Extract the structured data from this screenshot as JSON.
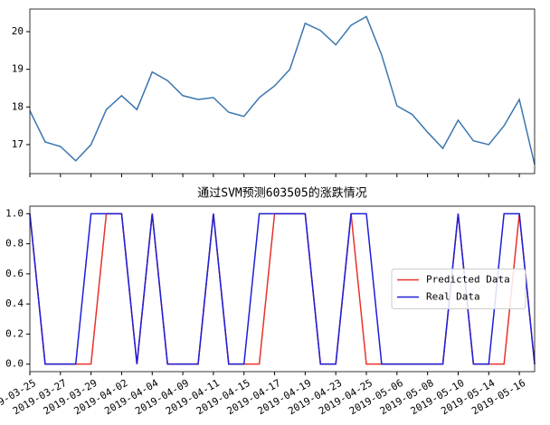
{
  "chart_data": [
    {
      "type": "line",
      "color": "#3a76af",
      "values": [
        17.9,
        17.07,
        16.95,
        16.57,
        17.0,
        17.93,
        18.3,
        17.93,
        18.93,
        18.7,
        18.3,
        18.2,
        18.25,
        17.86,
        17.75,
        18.25,
        18.56,
        19.0,
        20.22,
        20.03,
        19.65,
        20.17,
        20.4,
        19.38,
        18.03,
        17.8,
        17.33,
        16.9,
        17.65,
        17.1,
        17.0,
        17.5,
        18.2,
        16.47
      ],
      "ylim": [
        16.23,
        20.6
      ],
      "yticks": [
        17,
        18,
        19,
        20
      ]
    },
    {
      "type": "line",
      "title": "通过SVM预测603505的涨跌情况",
      "categories": [
        "2019-03-25",
        null,
        "2019-03-27",
        null,
        "2019-03-29",
        null,
        "2019-04-02",
        null,
        "2019-04-04",
        null,
        "2019-04-09",
        null,
        "2019-04-11",
        null,
        "2019-04-15",
        null,
        "2019-04-17",
        null,
        "2019-04-19",
        null,
        "2019-04-23",
        null,
        "2019-04-25",
        null,
        "2019-05-06",
        null,
        "2019-05-08",
        null,
        "2019-05-10",
        null,
        "2019-05-14",
        null,
        "2019-05-16",
        null
      ],
      "series": [
        {
          "name": "Predicted Data",
          "color": "#e8322a",
          "values": [
            1,
            0,
            0,
            0,
            0,
            1,
            1,
            0,
            1,
            0,
            0,
            0,
            1,
            0,
            0,
            0,
            1,
            1,
            1,
            0,
            0,
            1,
            0,
            0,
            0,
            0,
            0,
            0,
            1,
            0,
            0,
            0,
            1,
            0
          ]
        },
        {
          "name": "Real Data",
          "color": "#1c1fd8",
          "values": [
            1,
            0,
            0,
            0,
            1,
            1,
            1,
            0,
            1,
            0,
            0,
            0,
            1,
            0,
            0,
            1,
            1,
            1,
            1,
            0,
            0,
            1,
            1,
            0,
            0,
            0,
            0,
            0,
            1,
            0,
            0,
            1,
            1,
            0
          ]
        }
      ],
      "ylim": [
        -0.05,
        1.05
      ],
      "yticks": [
        {
          "value": 0,
          "label": "0.0"
        },
        {
          "value": 0.2,
          "label": "0.2"
        },
        {
          "value": 0.4,
          "label": "0.4"
        },
        {
          "value": 0.6,
          "label": "0.6"
        },
        {
          "value": 0.8,
          "label": "0.8"
        },
        {
          "value": 1,
          "label": "1.0"
        }
      ],
      "legend": "center right"
    }
  ]
}
